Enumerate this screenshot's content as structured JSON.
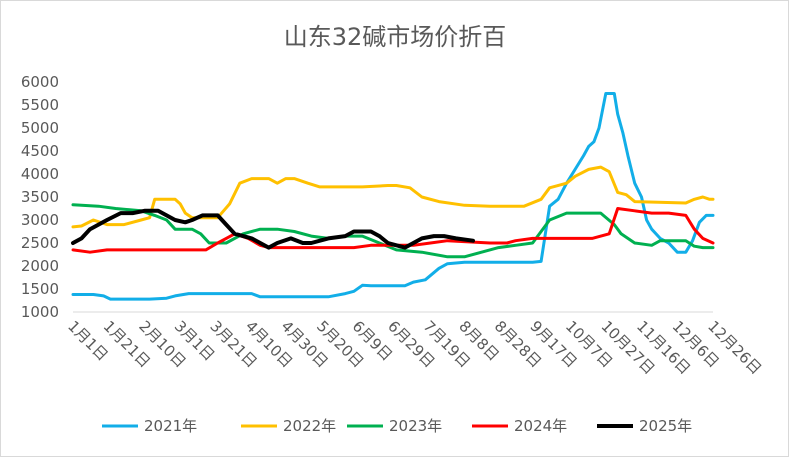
{
  "chart_data": {
    "type": "line",
    "title": "山东32碱市场价折百",
    "xlabel": "",
    "ylabel": "",
    "ylim": [
      1000,
      6000
    ],
    "yticks": [
      1000,
      1500,
      2000,
      2500,
      3000,
      3500,
      4000,
      4500,
      5000,
      5500,
      6000
    ],
    "x_tick_labels": [
      "1月1日",
      "1月21日",
      "2月10日",
      "3月1日",
      "3月21日",
      "4月10日",
      "4月30日",
      "5月20日",
      "6月9日",
      "6月29日",
      "7月19日",
      "8月8日",
      "8月28日",
      "9月17日",
      "10月7日",
      "10月27日",
      "11月16日",
      "12月6日",
      "12月26日"
    ],
    "grid": false,
    "legend_position": "bottom",
    "series": [
      {
        "name": "2021年",
        "color": "#12aee8",
        "values": [
          [
            0,
            1380
          ],
          [
            12,
            1380
          ],
          [
            18,
            1350
          ],
          [
            22,
            1280
          ],
          [
            45,
            1280
          ],
          [
            55,
            1300
          ],
          [
            60,
            1350
          ],
          [
            68,
            1400
          ],
          [
            80,
            1400
          ],
          [
            105,
            1400
          ],
          [
            110,
            1330
          ],
          [
            150,
            1330
          ],
          [
            160,
            1400
          ],
          [
            165,
            1450
          ],
          [
            170,
            1580
          ],
          [
            175,
            1570
          ],
          [
            195,
            1570
          ],
          [
            200,
            1650
          ],
          [
            207,
            1700
          ],
          [
            215,
            1950
          ],
          [
            220,
            2050
          ],
          [
            230,
            2080
          ],
          [
            250,
            2080
          ],
          [
            270,
            2080
          ],
          [
            275,
            2100
          ],
          [
            280,
            3300
          ],
          [
            285,
            3450
          ],
          [
            290,
            3800
          ],
          [
            295,
            4100
          ],
          [
            300,
            4400
          ],
          [
            303,
            4600
          ],
          [
            306,
            4700
          ],
          [
            309,
            5000
          ],
          [
            313,
            5750
          ],
          [
            318,
            5750
          ],
          [
            320,
            5300
          ],
          [
            323,
            4900
          ],
          [
            326,
            4400
          ],
          [
            330,
            3800
          ],
          [
            334,
            3500
          ],
          [
            337,
            3000
          ],
          [
            340,
            2800
          ],
          [
            345,
            2600
          ],
          [
            350,
            2500
          ],
          [
            355,
            2300
          ],
          [
            360,
            2300
          ],
          [
            364,
            2550
          ],
          [
            368,
            2950
          ],
          [
            372,
            3100
          ],
          [
            376,
            3100
          ]
        ]
      },
      {
        "name": "2022年",
        "color": "#ffc000",
        "values": [
          [
            0,
            2850
          ],
          [
            5,
            2870
          ],
          [
            12,
            3000
          ],
          [
            20,
            2900
          ],
          [
            30,
            2900
          ],
          [
            40,
            3000
          ],
          [
            45,
            3050
          ],
          [
            48,
            3450
          ],
          [
            60,
            3450
          ],
          [
            63,
            3350
          ],
          [
            66,
            3150
          ],
          [
            70,
            3050
          ],
          [
            85,
            3050
          ],
          [
            92,
            3350
          ],
          [
            98,
            3800
          ],
          [
            105,
            3900
          ],
          [
            115,
            3900
          ],
          [
            120,
            3800
          ],
          [
            125,
            3900
          ],
          [
            130,
            3900
          ],
          [
            138,
            3800
          ],
          [
            145,
            3720
          ],
          [
            170,
            3720
          ],
          [
            185,
            3750
          ],
          [
            190,
            3750
          ],
          [
            198,
            3700
          ],
          [
            205,
            3500
          ],
          [
            215,
            3400
          ],
          [
            230,
            3320
          ],
          [
            245,
            3300
          ],
          [
            265,
            3300
          ],
          [
            275,
            3450
          ],
          [
            280,
            3700
          ],
          [
            290,
            3800
          ],
          [
            295,
            3950
          ],
          [
            303,
            4100
          ],
          [
            310,
            4150
          ],
          [
            315,
            4050
          ],
          [
            320,
            3600
          ],
          [
            325,
            3550
          ],
          [
            330,
            3400
          ],
          [
            360,
            3370
          ],
          [
            365,
            3450
          ],
          [
            370,
            3500
          ],
          [
            374,
            3450
          ],
          [
            376,
            3450
          ]
        ]
      },
      {
        "name": "2023年",
        "color": "#00b050",
        "values": [
          [
            0,
            3330
          ],
          [
            15,
            3300
          ],
          [
            25,
            3250
          ],
          [
            40,
            3200
          ],
          [
            48,
            3100
          ],
          [
            55,
            3000
          ],
          [
            60,
            2800
          ],
          [
            70,
            2800
          ],
          [
            75,
            2700
          ],
          [
            80,
            2500
          ],
          [
            90,
            2500
          ],
          [
            100,
            2700
          ],
          [
            110,
            2800
          ],
          [
            120,
            2800
          ],
          [
            130,
            2750
          ],
          [
            140,
            2650
          ],
          [
            150,
            2600
          ],
          [
            160,
            2650
          ],
          [
            170,
            2650
          ],
          [
            180,
            2500
          ],
          [
            190,
            2350
          ],
          [
            205,
            2300
          ],
          [
            220,
            2200
          ],
          [
            230,
            2200
          ],
          [
            240,
            2300
          ],
          [
            250,
            2400
          ],
          [
            260,
            2450
          ],
          [
            270,
            2500
          ],
          [
            280,
            3000
          ],
          [
            290,
            3150
          ],
          [
            300,
            3150
          ],
          [
            310,
            3150
          ],
          [
            318,
            2900
          ],
          [
            322,
            2700
          ],
          [
            330,
            2500
          ],
          [
            340,
            2450
          ],
          [
            345,
            2550
          ],
          [
            360,
            2550
          ],
          [
            365,
            2430
          ],
          [
            370,
            2400
          ],
          [
            376,
            2400
          ]
        ]
      },
      {
        "name": "2024年",
        "color": "#ff0000",
        "values": [
          [
            0,
            2350
          ],
          [
            10,
            2300
          ],
          [
            20,
            2350
          ],
          [
            40,
            2350
          ],
          [
            65,
            2350
          ],
          [
            78,
            2350
          ],
          [
            85,
            2500
          ],
          [
            90,
            2600
          ],
          [
            95,
            2700
          ],
          [
            103,
            2600
          ],
          [
            110,
            2450
          ],
          [
            115,
            2400
          ],
          [
            130,
            2400
          ],
          [
            155,
            2400
          ],
          [
            165,
            2400
          ],
          [
            175,
            2450
          ],
          [
            185,
            2450
          ],
          [
            200,
            2450
          ],
          [
            210,
            2500
          ],
          [
            220,
            2550
          ],
          [
            245,
            2500
          ],
          [
            255,
            2500
          ],
          [
            260,
            2550
          ],
          [
            270,
            2600
          ],
          [
            290,
            2600
          ],
          [
            305,
            2600
          ],
          [
            315,
            2700
          ],
          [
            320,
            3250
          ],
          [
            330,
            3200
          ],
          [
            340,
            3150
          ],
          [
            350,
            3150
          ],
          [
            360,
            3100
          ],
          [
            365,
            2800
          ],
          [
            370,
            2600
          ],
          [
            376,
            2500
          ]
        ]
      },
      {
        "name": "2025年",
        "color": "#000000",
        "values": [
          [
            0,
            2500
          ],
          [
            5,
            2600
          ],
          [
            10,
            2800
          ],
          [
            20,
            3000
          ],
          [
            28,
            3150
          ],
          [
            35,
            3150
          ],
          [
            42,
            3200
          ],
          [
            50,
            3200
          ],
          [
            55,
            3100
          ],
          [
            60,
            3000
          ],
          [
            66,
            2950
          ],
          [
            70,
            3000
          ],
          [
            76,
            3100
          ],
          [
            85,
            3100
          ],
          [
            90,
            2900
          ],
          [
            95,
            2700
          ],
          [
            100,
            2650
          ],
          [
            105,
            2600
          ],
          [
            110,
            2500
          ],
          [
            115,
            2400
          ],
          [
            120,
            2500
          ],
          [
            128,
            2600
          ],
          [
            135,
            2500
          ],
          [
            140,
            2500
          ],
          [
            150,
            2600
          ],
          [
            160,
            2650
          ],
          [
            165,
            2750
          ],
          [
            175,
            2750
          ],
          [
            180,
            2650
          ],
          [
            185,
            2500
          ],
          [
            190,
            2450
          ],
          [
            195,
            2400
          ],
          [
            200,
            2500
          ],
          [
            205,
            2600
          ],
          [
            212,
            2650
          ],
          [
            218,
            2650
          ],
          [
            225,
            2600
          ],
          [
            235,
            2550
          ]
        ]
      }
    ]
  }
}
